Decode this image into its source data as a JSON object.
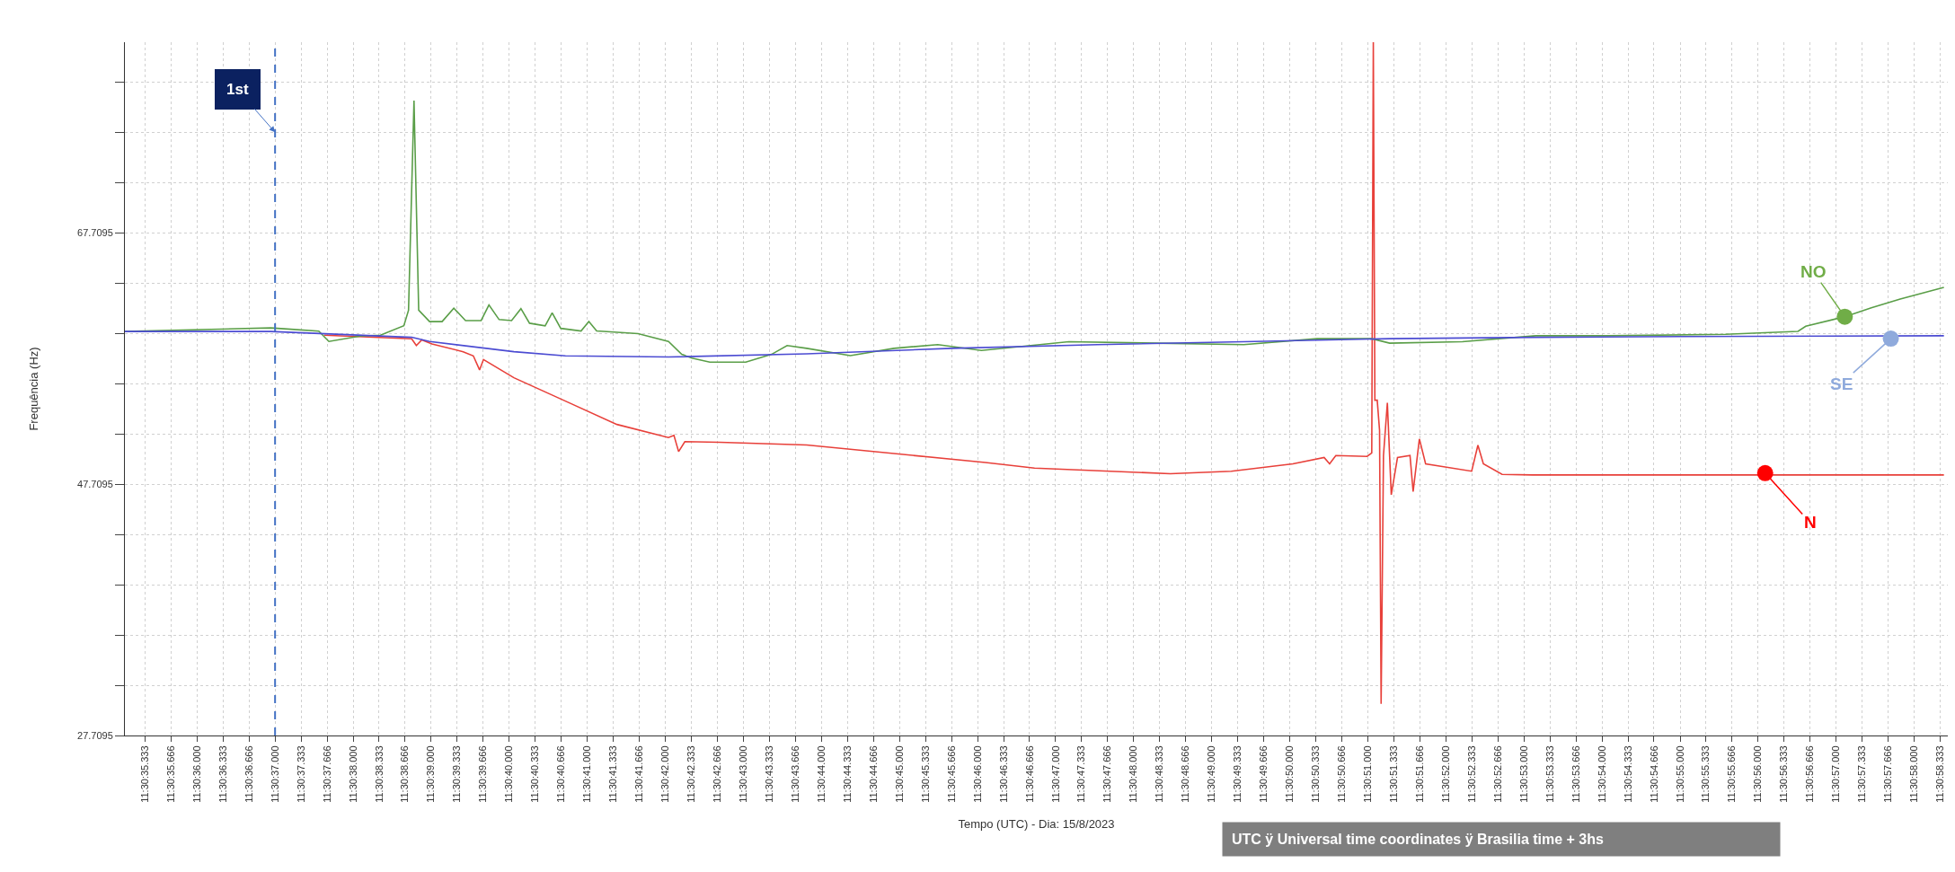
{
  "chart_data": {
    "type": "line",
    "xlabel": "Tempo (UTC) - Dia: 15/8/2023",
    "ylabel": "Frequência (Hz)",
    "xlim": [
      "2023-08-15T11:30:35.076",
      "2023-08-15T11:30:58.430"
    ],
    "ylim": [
      27.7095,
      82.9
    ],
    "xticks": [
      {
        "value": "2023-08-15T11:30:35.333",
        "label": "11:30:35.333"
      },
      {
        "value": "2023-08-15T11:30:35.666",
        "label": "11:30:35.666"
      },
      {
        "value": "2023-08-15T11:30:36.000",
        "label": "11:30:36.000"
      },
      {
        "value": "2023-08-15T11:30:36.333",
        "label": "11:30:36.333"
      },
      {
        "value": "2023-08-15T11:30:36.666",
        "label": "11:30:36.666"
      },
      {
        "value": "2023-08-15T11:30:37.000",
        "label": "11:30:37.000"
      },
      {
        "value": "2023-08-15T11:30:37.333",
        "label": "11:30:37.333"
      },
      {
        "value": "2023-08-15T11:30:37.666",
        "label": "11:30:37.666"
      },
      {
        "value": "2023-08-15T11:30:38.000",
        "label": "11:30:38.000"
      },
      {
        "value": "2023-08-15T11:30:38.333",
        "label": "11:30:38.333"
      },
      {
        "value": "2023-08-15T11:30:38.666",
        "label": "11:30:38.666"
      },
      {
        "value": "2023-08-15T11:30:39.000",
        "label": "11:30:39.000"
      },
      {
        "value": "2023-08-15T11:30:39.333",
        "label": "11:30:39.333"
      },
      {
        "value": "2023-08-15T11:30:39.666",
        "label": "11:30:39.666"
      },
      {
        "value": "2023-08-15T11:30:40.000",
        "label": "11:30:40.000"
      },
      {
        "value": "2023-08-15T11:30:40.333",
        "label": "11:30:40.333"
      },
      {
        "value": "2023-08-15T11:30:40.666",
        "label": "11:30:40.666"
      },
      {
        "value": "2023-08-15T11:30:41.000",
        "label": "11:30:41.000"
      },
      {
        "value": "2023-08-15T11:30:41.333",
        "label": "11:30:41.333"
      },
      {
        "value": "2023-08-15T11:30:41.666",
        "label": "11:30:41.666"
      },
      {
        "value": "2023-08-15T11:30:42.000",
        "label": "11:30:42.000"
      },
      {
        "value": "2023-08-15T11:30:42.333",
        "label": "11:30:42.333"
      },
      {
        "value": "2023-08-15T11:30:42.666",
        "label": "11:30:42.666"
      },
      {
        "value": "2023-08-15T11:30:43.000",
        "label": "11:30:43.000"
      },
      {
        "value": "2023-08-15T11:30:43.333",
        "label": "11:30:43.333"
      },
      {
        "value": "2023-08-15T11:30:43.666",
        "label": "11:30:43.666"
      },
      {
        "value": "2023-08-15T11:30:44.000",
        "label": "11:30:44.000"
      },
      {
        "value": "2023-08-15T11:30:44.333",
        "label": "11:30:44.333"
      },
      {
        "value": "2023-08-15T11:30:44.666",
        "label": "11:30:44.666"
      },
      {
        "value": "2023-08-15T11:30:45.000",
        "label": "11:30:45.000"
      },
      {
        "value": "2023-08-15T11:30:45.333",
        "label": "11:30:45.333"
      },
      {
        "value": "2023-08-15T11:30:45.666",
        "label": "11:30:45.666"
      },
      {
        "value": "2023-08-15T11:30:46.000",
        "label": "11:30:46.000"
      },
      {
        "value": "2023-08-15T11:30:46.333",
        "label": "11:30:46.333"
      },
      {
        "value": "2023-08-15T11:30:46.666",
        "label": "11:30:46.666"
      },
      {
        "value": "2023-08-15T11:30:47.000",
        "label": "11:30:47.000"
      },
      {
        "value": "2023-08-15T11:30:47.333",
        "label": "11:30:47.333"
      },
      {
        "value": "2023-08-15T11:30:47.666",
        "label": "11:30:47.666"
      },
      {
        "value": "2023-08-15T11:30:48.000",
        "label": "11:30:48.000"
      },
      {
        "value": "2023-08-15T11:30:48.333",
        "label": "11:30:48.333"
      },
      {
        "value": "2023-08-15T11:30:48.666",
        "label": "11:30:48.666"
      },
      {
        "value": "2023-08-15T11:30:49.000",
        "label": "11:30:49.000"
      },
      {
        "value": "2023-08-15T11:30:49.333",
        "label": "11:30:49.333"
      },
      {
        "value": "2023-08-15T11:30:49.666",
        "label": "11:30:49.666"
      },
      {
        "value": "2023-08-15T11:30:50.000",
        "label": "11:30:50.000"
      },
      {
        "value": "2023-08-15T11:30:50.333",
        "label": "11:30:50.333"
      },
      {
        "value": "2023-08-15T11:30:50.666",
        "label": "11:30:50.666"
      },
      {
        "value": "2023-08-15T11:30:51.000",
        "label": "11:30:51.000"
      },
      {
        "value": "2023-08-15T11:30:51.333",
        "label": "11:30:51.333"
      },
      {
        "value": "2023-08-15T11:30:51.666",
        "label": "11:30:51.666"
      },
      {
        "value": "2023-08-15T11:30:52.000",
        "label": "11:30:52.000"
      },
      {
        "value": "2023-08-15T11:30:52.333",
        "label": "11:30:52.333"
      },
      {
        "value": "2023-08-15T11:30:52.666",
        "label": "11:30:52.666"
      },
      {
        "value": "2023-08-15T11:30:53.000",
        "label": "11:30:53.000"
      },
      {
        "value": "2023-08-15T11:30:53.333",
        "label": "11:30:53.333"
      },
      {
        "value": "2023-08-15T11:30:53.666",
        "label": "11:30:53.666"
      },
      {
        "value": "2023-08-15T11:30:54.000",
        "label": "11:30:54.000"
      },
      {
        "value": "2023-08-15T11:30:54.333",
        "label": "11:30:54.333"
      },
      {
        "value": "2023-08-15T11:30:54.666",
        "label": "11:30:54.666"
      },
      {
        "value": "2023-08-15T11:30:55.000",
        "label": "11:30:55.000"
      },
      {
        "value": "2023-08-15T11:30:55.333",
        "label": "11:30:55.333"
      },
      {
        "value": "2023-08-15T11:30:55.666",
        "label": "11:30:55.666"
      },
      {
        "value": "2023-08-15T11:30:56.000",
        "label": "11:30:56.000"
      },
      {
        "value": "2023-08-15T11:30:56.333",
        "label": "11:30:56.333"
      },
      {
        "value": "2023-08-15T11:30:56.666",
        "label": "11:30:56.666"
      },
      {
        "value": "2023-08-15T11:30:57.000",
        "label": "11:30:57.000"
      },
      {
        "value": "2023-08-15T11:30:57.333",
        "label": "11:30:57.333"
      },
      {
        "value": "2023-08-15T11:30:57.666",
        "label": "11:30:57.666"
      },
      {
        "value": "2023-08-15T11:30:58.000",
        "label": "11:30:58.000"
      },
      {
        "value": "2023-08-15T11:30:58.333",
        "label": "11:30:58.333"
      }
    ],
    "yticks": [
      27.7095,
      {
        "value": 31.7095,
        "label": null
      },
      {
        "value": 35.7095,
        "label": null
      },
      {
        "value": 39.7095,
        "label": null
      },
      {
        "value": 43.7095,
        "label": null
      },
      47.7095,
      {
        "value": 51.7095,
        "label": null
      },
      {
        "value": 55.7095,
        "label": null
      },
      {
        "value": 59.7095,
        "label": null
      },
      {
        "value": 63.7095,
        "label": null
      },
      67.7095,
      {
        "value": 71.7095,
        "label": null
      },
      {
        "value": 75.7095,
        "label": null
      },
      {
        "value": 79.7095,
        "label": null
      }
    ],
    "grid": true,
    "line_style": "solid",
    "series": [
      {
        "color": "#e8403a",
        "x": [
          "2023-08-15T11:30:37.630",
          "2023-08-15T11:30:38.750",
          "2023-08-15T11:30:38.810",
          "2023-08-15T11:30:38.880",
          "2023-08-15T11:30:39.010",
          "2023-08-15T11:30:39.410",
          "2023-08-15T11:30:39.540",
          "2023-08-15T11:30:39.620",
          "2023-08-15T11:30:39.670",
          "2023-08-15T11:30:40.060",
          "2023-08-15T11:30:40.720",
          "2023-08-15T11:30:41.380",
          "2023-08-15T11:30:42.040",
          "2023-08-15T11:30:42.110",
          "2023-08-15T11:30:42.170",
          "2023-08-15T11:30:42.250",
          "2023-08-15T11:30:42.700",
          "2023-08-15T11:30:43.810",
          "2023-08-15T11:30:46.100",
          "2023-08-15T11:30:46.730",
          "2023-08-15T11:30:48.470",
          "2023-08-15T11:30:49.250",
          "2023-08-15T11:30:50.040",
          "2023-08-15T11:30:50.440",
          "2023-08-15T11:30:50.510",
          "2023-08-15T11:30:50.590",
          "2023-08-15T11:30:50.990",
          "2023-08-15T11:30:51.050",
          "2023-08-15T11:30:51.070",
          "2023-08-15T11:30:51.090",
          "2023-08-15T11:30:51.120",
          "2023-08-15T11:30:51.150",
          "2023-08-15T11:30:51.170",
          "2023-08-15T11:30:51.200",
          "2023-08-15T11:30:51.250",
          "2023-08-15T11:30:51.300",
          "2023-08-15T11:30:51.380",
          "2023-08-15T11:30:51.540",
          "2023-08-15T11:30:51.580",
          "2023-08-15T11:30:51.660",
          "2023-08-15T11:30:51.740",
          "2023-08-15T11:30:52.330",
          "2023-08-15T11:30:52.410",
          "2023-08-15T11:30:52.480",
          "2023-08-15T11:30:52.720",
          "2023-08-15T11:30:53.110",
          "2023-08-15T11:30:58.380"
        ],
        "values": [
          59.58,
          59.29,
          58.75,
          59.2,
          58.88,
          58.26,
          57.93,
          56.81,
          57.64,
          56.19,
          54.33,
          52.47,
          51.43,
          51.6,
          50.31,
          51.1,
          51.05,
          50.84,
          49.44,
          49.0,
          48.55,
          48.75,
          49.34,
          49.84,
          49.34,
          50.0,
          49.93,
          50.2,
          82.9,
          54.4,
          54.4,
          52.0,
          30.23,
          50.0,
          54.2,
          46.87,
          49.84,
          50.0,
          47.12,
          51.32,
          49.34,
          48.75,
          50.82,
          49.34,
          48.5,
          48.45,
          48.45
        ]
      },
      {
        "color": "#5a9e48",
        "x": [
          "2023-08-15T11:30:35.076",
          "2023-08-15T11:30:36.945",
          "2023-08-15T11:30:37.160",
          "2023-08-15T11:30:37.560",
          "2023-08-15T11:30:37.690",
          "2023-08-15T11:30:38.090",
          "2023-08-15T11:30:38.350",
          "2023-08-15T11:30:38.650",
          "2023-08-15T11:30:38.710",
          "2023-08-15T11:30:38.780",
          "2023-08-15T11:30:38.840",
          "2023-08-15T11:30:38.980",
          "2023-08-15T11:30:39.140",
          "2023-08-15T11:30:39.290",
          "2023-08-15T11:30:39.440",
          "2023-08-15T11:30:39.640",
          "2023-08-15T11:30:39.740",
          "2023-08-15T11:30:39.870",
          "2023-08-15T11:30:40.030",
          "2023-08-15T11:30:40.150",
          "2023-08-15T11:30:40.260",
          "2023-08-15T11:30:40.460",
          "2023-08-15T11:30:40.550",
          "2023-08-15T11:30:40.660",
          "2023-08-15T11:30:40.920",
          "2023-08-15T11:30:41.020",
          "2023-08-15T11:30:41.120",
          "2023-08-15T11:30:41.650",
          "2023-08-15T11:30:42.040",
          "2023-08-15T11:30:42.210",
          "2023-08-15T11:30:42.340",
          "2023-08-15T11:30:42.570",
          "2023-08-15T11:30:43.030",
          "2023-08-15T11:30:43.360",
          "2023-08-15T11:30:43.560",
          "2023-08-15T11:30:43.810",
          "2023-08-15T11:30:44.370",
          "2023-08-15T11:30:44.930",
          "2023-08-15T11:30:45.490",
          "2023-08-15T11:30:46.050",
          "2023-08-15T11:30:47.170",
          "2023-08-15T11:30:48.290",
          "2023-08-15T11:30:49.410",
          "2023-08-15T11:30:50.350",
          "2023-08-15T11:30:51.050",
          "2023-08-15T11:30:51.280",
          "2023-08-15T11:30:52.210",
          "2023-08-15T11:30:53.150",
          "2023-08-15T11:30:54.080",
          "2023-08-15T11:30:55.580",
          "2023-08-15T11:30:56.510",
          "2023-08-15T11:30:56.610",
          "2023-08-15T11:30:57.110",
          "2023-08-15T11:30:57.450",
          "2023-08-15T11:30:57.820",
          "2023-08-15T11:30:58.380"
        ],
        "values": [
          59.87,
          60.16,
          60.07,
          59.9,
          59.08,
          59.5,
          59.58,
          60.33,
          61.57,
          78.25,
          61.57,
          60.66,
          60.66,
          61.73,
          60.74,
          60.74,
          61.98,
          60.82,
          60.74,
          61.69,
          60.53,
          60.32,
          61.36,
          60.12,
          59.91,
          60.66,
          59.91,
          59.7,
          59.08,
          58.05,
          57.76,
          57.43,
          57.43,
          58.05,
          58.75,
          58.53,
          57.95,
          58.53,
          58.83,
          58.36,
          59.06,
          58.94,
          58.83,
          59.3,
          59.3,
          58.94,
          59.06,
          59.53,
          59.53,
          59.65,
          59.88,
          60.29,
          61.05,
          61.75,
          62.45,
          63.39
        ]
      },
      {
        "color": "#4b4bd2",
        "x": [
          "2023-08-15T11:30:35.076",
          "2023-08-15T11:30:36.945",
          "2023-08-15T11:30:38.750",
          "2023-08-15T11:30:38.980",
          "2023-08-15T11:30:40.060",
          "2023-08-15T11:30:40.720",
          "2023-08-15T11:30:42.040",
          "2023-08-15T11:30:43.810",
          "2023-08-15T11:30:45.670",
          "2023-08-15T11:30:47.540",
          "2023-08-15T11:30:49.410",
          "2023-08-15T11:30:51.280",
          "2023-08-15T11:30:53.150",
          "2023-08-15T11:30:55.020",
          "2023-08-15T11:30:58.380"
        ],
        "values": [
          59.87,
          59.87,
          59.41,
          59.08,
          58.26,
          57.93,
          57.84,
          58.09,
          58.53,
          58.83,
          59.06,
          59.3,
          59.41,
          59.47,
          59.53
        ]
      }
    ],
    "ref_lines": [
      {
        "axis": "x",
        "value": "2023-08-15T11:30:37.000",
        "label": "1st",
        "color": "#4472c4",
        "line_style": "dashed"
      }
    ],
    "annotations": [
      {
        "text": "NO",
        "x": "2023-08-15T11:30:57.110",
        "y": 61.05
      },
      {
        "text": "SE",
        "x": "2023-08-15T11:30:57.700",
        "y": 59.3
      },
      {
        "text": "N",
        "x": "2023-08-15T11:30:56.090",
        "y": 48.6
      },
      "UTC ÿ Universal time coordinates ÿ Brasilia time + 3hs"
    ]
  }
}
